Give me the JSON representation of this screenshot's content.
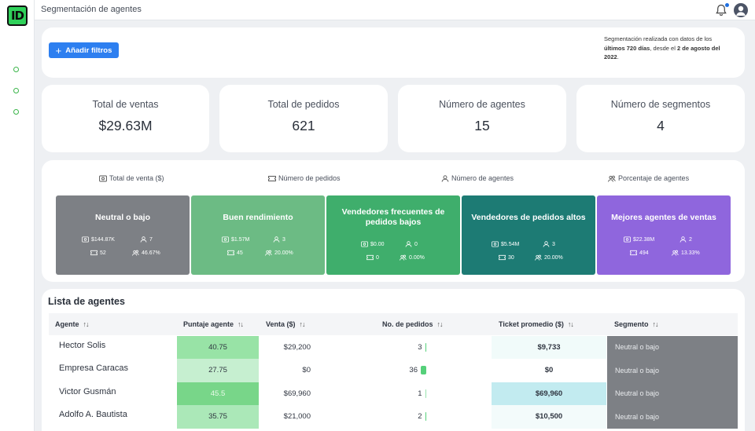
{
  "app": {
    "logo_text": "ID",
    "page_title": "Segmentación de agentes"
  },
  "filters": {
    "add_button_label": "Añadir filtros"
  },
  "segmentation_info": {
    "prefix": "Segmentación realizada con datos de los",
    "days": "últimos 720 días",
    "middle": ", desde el",
    "date": "2 de agosto del 2022",
    "suffix": "."
  },
  "kpis": [
    {
      "label": "Total de ventas",
      "value": "$29.63M"
    },
    {
      "label": "Total de pedidos",
      "value": "621"
    },
    {
      "label": "Número de agentes",
      "value": "15"
    },
    {
      "label": "Número de segmentos",
      "value": "4"
    }
  ],
  "segment_tabs": [
    {
      "label": "Total de venta ($)",
      "icon": "money-icon"
    },
    {
      "label": "Número de pedidos",
      "icon": "ticket-icon"
    },
    {
      "label": "Número de agentes",
      "icon": "user-icon"
    },
    {
      "label": "Porcentaje de agentes",
      "icon": "users-icon"
    }
  ],
  "segments": [
    {
      "name": "Neutral o bajo",
      "sales": "$144.87K",
      "agents": "7",
      "orders": "52",
      "percent": "46.67%",
      "color": "#7d8085"
    },
    {
      "name": "Buen rendimiento",
      "sales": "$1.57M",
      "agents": "3",
      "orders": "45",
      "percent": "20.00%",
      "color": "#6cbb84"
    },
    {
      "name": "Vendedores frecuentes de pedidos bajos",
      "sales": "$0.00",
      "agents": "0",
      "orders": "0",
      "percent": "0.00%",
      "color": "#3fae6c"
    },
    {
      "name": "Vendedores de pedidos altos",
      "sales": "$5.54M",
      "agents": "3",
      "orders": "30",
      "percent": "20.00%",
      "color": "#1d7b74"
    },
    {
      "name": "Mejores agentes de ventas",
      "sales": "$22.38M",
      "agents": "2",
      "orders": "494",
      "percent": "13.33%",
      "color": "#8f66dd"
    }
  ],
  "agents_list": {
    "title": "Lista de agentes",
    "columns": [
      "Agente",
      "Puntaje agente",
      "Venta ($)",
      "No. de pedidos",
      "Ticket promedio ($)",
      "Segmento"
    ],
    "rows": [
      {
        "agent": "Hector Solis",
        "score": "40.75",
        "sale": "$29,200",
        "orders": "3",
        "ticket": "$9,733",
        "segment": "Neutral o bajo",
        "score_bg": "#98e3a6",
        "ticket_bg": "#f1fbfa",
        "orders_bar": 0.08
      },
      {
        "agent": "Empresa Caracas",
        "score": "27.75",
        "sale": "$0",
        "orders": "36",
        "ticket": "$0",
        "segment": "Neutral o bajo",
        "score_bg": "#c6efd0",
        "ticket_bg": "#ffffff",
        "orders_bar": 1.0
      },
      {
        "agent": "Victor Gusmán",
        "score": "45.5",
        "sale": "$69,960",
        "orders": "1",
        "ticket": "$69,960",
        "segment": "Neutral o bajo",
        "score_bg": "#78d689",
        "ticket_bg": "#c2ebf0",
        "orders_bar": 0.0
      },
      {
        "agent": "Adolfo A. Bautista",
        "score": "35.75",
        "sale": "$21,000",
        "orders": "2",
        "ticket": "$10,500",
        "segment": "Neutral o bajo",
        "score_bg": "#abe8b8",
        "ticket_bg": "#f3fbfb",
        "orders_bar": 0.03
      }
    ]
  }
}
